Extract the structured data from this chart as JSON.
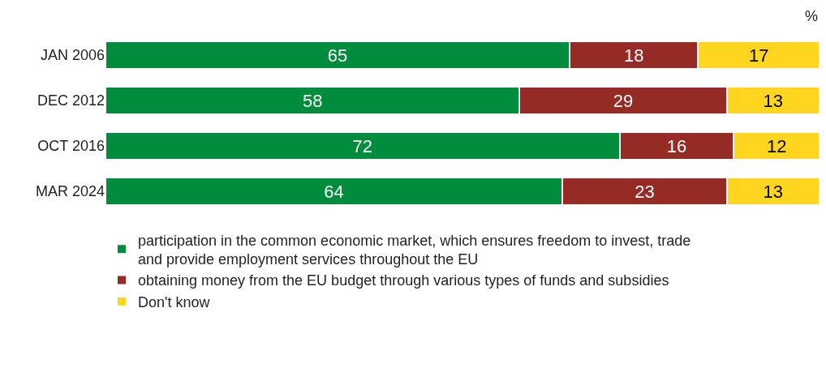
{
  "chart_data": {
    "type": "bar",
    "orientation": "horizontal",
    "stacked": true,
    "data_labels": true,
    "tick_labels": "y",
    "legend": "bottom",
    "xlim": [
      0,
      100
    ],
    "categories": [
      "JAN 2006",
      "DEC 2012",
      "OCT 2016",
      "MAR 2024"
    ],
    "series": [
      {
        "name": "participation in the common economic market, which ensures freedom to invest, trade and provide employment services throughout the EU",
        "color": "#008c3c",
        "values": [
          65,
          58,
          72,
          64
        ]
      },
      {
        "name": "obtaining money from the EU budget through various types of funds and subsidies",
        "color": "#962a25",
        "values": [
          18,
          29,
          16,
          23
        ]
      },
      {
        "name": "Don't know",
        "color": "#ffd520",
        "values": [
          17,
          13,
          12,
          13
        ]
      }
    ],
    "annotations": [
      "%"
    ]
  }
}
